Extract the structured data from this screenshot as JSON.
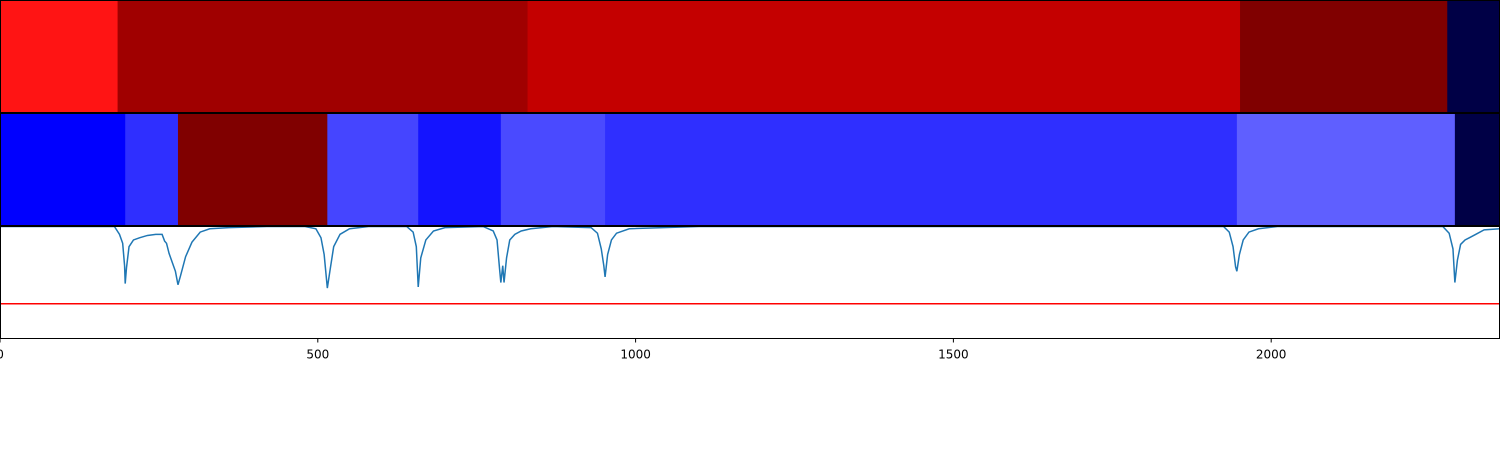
{
  "chart_data": {
    "type": "heatmap",
    "title": "",
    "xlabel": "",
    "ylabel": "",
    "xlim": [
      0,
      2360
    ],
    "grid": false,
    "x_ticks": [
      {
        "value": 0,
        "label": "0"
      },
      {
        "value": 500,
        "label": "500"
      },
      {
        "value": 1000,
        "label": "1000"
      },
      {
        "value": 1500,
        "label": "1500"
      },
      {
        "value": 2000,
        "label": "2000"
      }
    ],
    "strips": [
      {
        "segments": [
          {
            "start": 0,
            "end": 185,
            "color": "#ff1414"
          },
          {
            "start": 185,
            "end": 830,
            "color": "#a00000"
          },
          {
            "start": 830,
            "end": 1951,
            "color": "#c40000"
          },
          {
            "start": 1951,
            "end": 2277,
            "color": "#800000"
          },
          {
            "start": 2277,
            "end": 2360,
            "color": "#000046"
          }
        ]
      },
      {
        "segments": [
          {
            "start": 0,
            "end": 197,
            "color": "#0000ff"
          },
          {
            "start": 197,
            "end": 280,
            "color": "#2f2fff"
          },
          {
            "start": 280,
            "end": 515,
            "color": "#800000"
          },
          {
            "start": 515,
            "end": 658,
            "color": "#4545ff"
          },
          {
            "start": 658,
            "end": 788,
            "color": "#1414ff"
          },
          {
            "start": 788,
            "end": 952,
            "color": "#4a4aff"
          },
          {
            "start": 952,
            "end": 1946,
            "color": "#2f2fff"
          },
          {
            "start": 1946,
            "end": 2289,
            "color": "#5f5fff"
          },
          {
            "start": 2289,
            "end": 2360,
            "color": "#000046"
          }
        ]
      }
    ],
    "line_panel": {
      "ylim": [
        0,
        1
      ],
      "threshold": {
        "value": 0.31,
        "color": "#ff0000"
      },
      "series": [
        {
          "color": "#1f77b4",
          "points": [
            [
              0,
              1.0
            ],
            [
              180,
              1.0
            ],
            [
              188,
              0.93
            ],
            [
              193,
              0.85
            ],
            [
              196,
              0.65
            ],
            [
              197,
              0.49
            ],
            [
              199,
              0.63
            ],
            [
              203,
              0.82
            ],
            [
              210,
              0.88
            ],
            [
              220,
              0.9
            ],
            [
              232,
              0.92
            ],
            [
              245,
              0.93
            ],
            [
              255,
              0.93
            ],
            [
              259,
              0.87
            ],
            [
              262,
              0.85
            ],
            [
              266,
              0.76
            ],
            [
              271,
              0.68
            ],
            [
              276,
              0.6
            ],
            [
              280,
              0.48
            ],
            [
              284,
              0.56
            ],
            [
              292,
              0.73
            ],
            [
              302,
              0.86
            ],
            [
              315,
              0.95
            ],
            [
              330,
              0.98
            ],
            [
              360,
              0.99
            ],
            [
              420,
              1.0
            ],
            [
              480,
              1.0
            ],
            [
              497,
              0.98
            ],
            [
              505,
              0.9
            ],
            [
              510,
              0.75
            ],
            [
              515,
              0.45
            ],
            [
              519,
              0.6
            ],
            [
              525,
              0.82
            ],
            [
              535,
              0.93
            ],
            [
              550,
              0.98
            ],
            [
              580,
              1.0
            ],
            [
              640,
              1.0
            ],
            [
              650,
              0.95
            ],
            [
              655,
              0.82
            ],
            [
              658,
              0.46
            ],
            [
              662,
              0.72
            ],
            [
              670,
              0.88
            ],
            [
              682,
              0.96
            ],
            [
              700,
              0.99
            ],
            [
              760,
              1.0
            ],
            [
              776,
              0.96
            ],
            [
              782,
              0.88
            ],
            [
              786,
              0.62
            ],
            [
              788,
              0.5
            ],
            [
              791,
              0.65
            ],
            [
              793,
              0.5
            ],
            [
              797,
              0.72
            ],
            [
              802,
              0.88
            ],
            [
              810,
              0.93
            ],
            [
              820,
              0.96
            ],
            [
              835,
              0.98
            ],
            [
              870,
              1.0
            ],
            [
              930,
              0.99
            ],
            [
              940,
              0.94
            ],
            [
              946,
              0.8
            ],
            [
              950,
              0.65
            ],
            [
              952,
              0.55
            ],
            [
              956,
              0.75
            ],
            [
              962,
              0.88
            ],
            [
              970,
              0.94
            ],
            [
              990,
              0.98
            ],
            [
              1100,
              1.0
            ],
            [
              1300,
              1.0
            ],
            [
              1700,
              1.0
            ],
            [
              1925,
              1.0
            ],
            [
              1934,
              0.95
            ],
            [
              1940,
              0.82
            ],
            [
              1944,
              0.64
            ],
            [
              1946,
              0.6
            ],
            [
              1950,
              0.75
            ],
            [
              1956,
              0.88
            ],
            [
              1965,
              0.95
            ],
            [
              1980,
              0.98
            ],
            [
              2010,
              1.0
            ],
            [
              2200,
              1.0
            ],
            [
              2270,
              1.0
            ],
            [
              2280,
              0.94
            ],
            [
              2286,
              0.8
            ],
            [
              2289,
              0.5
            ],
            [
              2293,
              0.7
            ],
            [
              2298,
              0.84
            ],
            [
              2305,
              0.88
            ],
            [
              2312,
              0.9
            ],
            [
              2322,
              0.93
            ],
            [
              2335,
              0.97
            ],
            [
              2360,
              0.98
            ]
          ]
        }
      ]
    }
  }
}
